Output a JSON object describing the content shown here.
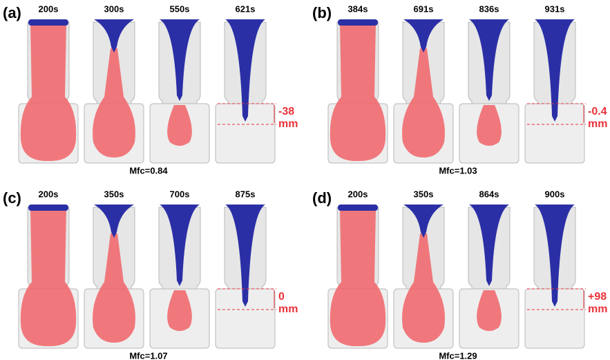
{
  "panels": [
    {
      "label": "(a)",
      "times": [
        "200s",
        "300s",
        "550s",
        "621s"
      ],
      "mfc": "Mfc=0.84",
      "annotation": [
        "-38",
        "mm"
      ]
    },
    {
      "label": "(b)",
      "times": [
        "384s",
        "691s",
        "836s",
        "931s"
      ],
      "mfc": "Mfc=1.03",
      "annotation": [
        "-0.4",
        "mm"
      ]
    },
    {
      "label": "(c)",
      "times": [
        "200s",
        "350s",
        "700s",
        "875s"
      ],
      "mfc": "Mfc=1.07",
      "annotation": [
        "0",
        "mm"
      ]
    },
    {
      "label": "(d)",
      "times": [
        "200s",
        "350s",
        "864s",
        "900s"
      ],
      "mfc": "Mfc=1.29",
      "annotation": [
        "+98",
        "mm"
      ]
    }
  ]
}
